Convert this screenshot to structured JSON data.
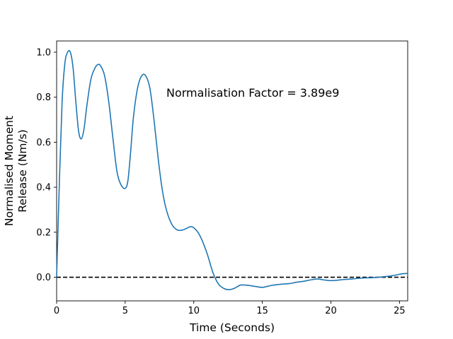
{
  "chart_data": {
    "type": "line",
    "xlabel": "Time (Seconds)",
    "ylabel_lines": [
      "Normalised Moment",
      "Release (Nm/s)"
    ],
    "annotation": "Normalisation Factor = 3.89e9",
    "xlim": [
      0,
      25.6
    ],
    "ylim": [
      -0.105,
      1.05
    ],
    "x_ticks": [
      0,
      5,
      10,
      15,
      20,
      25
    ],
    "y_ticks": [
      0.0,
      0.2,
      0.4,
      0.6,
      0.8,
      1.0
    ],
    "y_tick_labels": [
      "0.0",
      "0.2",
      "0.4",
      "0.6",
      "0.8",
      "1.0"
    ],
    "grid": false,
    "reference_line": {
      "y": 0,
      "style": "dashed",
      "color": "#000000"
    },
    "series": [
      {
        "color": "#1f77b4",
        "x": [
          0,
          0.2,
          0.4,
          0.6,
          0.8,
          1.0,
          1.2,
          1.4,
          1.6,
          1.8,
          2.0,
          2.2,
          2.5,
          2.8,
          3.0,
          3.2,
          3.5,
          3.8,
          4.1,
          4.4,
          4.7,
          5.0,
          5.2,
          5.4,
          5.6,
          5.9,
          6.2,
          6.5,
          6.8,
          7.1,
          7.4,
          7.7,
          8.0,
          8.4,
          8.8,
          9.2,
          9.5,
          9.8,
          10.0,
          10.3,
          10.6,
          11.0,
          11.4,
          11.8,
          12.2,
          12.6,
          13.0,
          13.4,
          13.8,
          14.2,
          14.6,
          15.0,
          15.4,
          15.8,
          16.2,
          16.6,
          17.0,
          17.5,
          18.0,
          18.5,
          19.0,
          19.5,
          20.0,
          20.5,
          21.0,
          21.5,
          22.0,
          22.5,
          23.0,
          23.5,
          24.0,
          24.5,
          25.0,
          25.3,
          25.6
        ],
        "y": [
          0.0,
          0.42,
          0.78,
          0.95,
          1.0,
          1.0,
          0.93,
          0.78,
          0.65,
          0.615,
          0.66,
          0.76,
          0.88,
          0.93,
          0.945,
          0.94,
          0.895,
          0.78,
          0.62,
          0.47,
          0.41,
          0.395,
          0.43,
          0.56,
          0.71,
          0.84,
          0.895,
          0.895,
          0.84,
          0.7,
          0.53,
          0.39,
          0.3,
          0.235,
          0.21,
          0.21,
          0.218,
          0.225,
          0.22,
          0.2,
          0.165,
          0.1,
          0.02,
          -0.03,
          -0.05,
          -0.055,
          -0.048,
          -0.035,
          -0.035,
          -0.038,
          -0.042,
          -0.045,
          -0.04,
          -0.035,
          -0.032,
          -0.03,
          -0.028,
          -0.022,
          -0.018,
          -0.012,
          -0.008,
          -0.012,
          -0.015,
          -0.013,
          -0.01,
          -0.008,
          -0.005,
          -0.003,
          -0.002,
          0.0,
          0.003,
          0.007,
          0.013,
          0.016,
          0.017
        ]
      }
    ]
  }
}
